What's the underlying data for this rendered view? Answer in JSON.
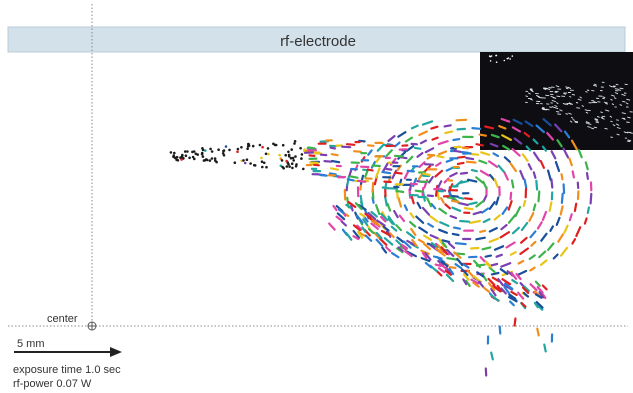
{
  "electrode": {
    "label": "rf-electrode",
    "fill": "#d3e1ea",
    "stroke": "#b9ccd8"
  },
  "center": {
    "label": "center"
  },
  "scale_bar": {
    "label": "5 mm"
  },
  "caption": {
    "exposure": "exposure time 1.0 sec",
    "power": "rf-power 0.07 W"
  },
  "inset": {
    "background": "#0d0d12"
  },
  "colors": {
    "trail_palette": [
      "#1a4f9c",
      "#2a7fd4",
      "#22a6a0",
      "#3cb44b",
      "#e02020",
      "#f28e1c",
      "#e8c51a",
      "#7a3fb0",
      "#e045a8"
    ],
    "particle": "#1c1c1c",
    "guide": "#8a8a8a"
  }
}
